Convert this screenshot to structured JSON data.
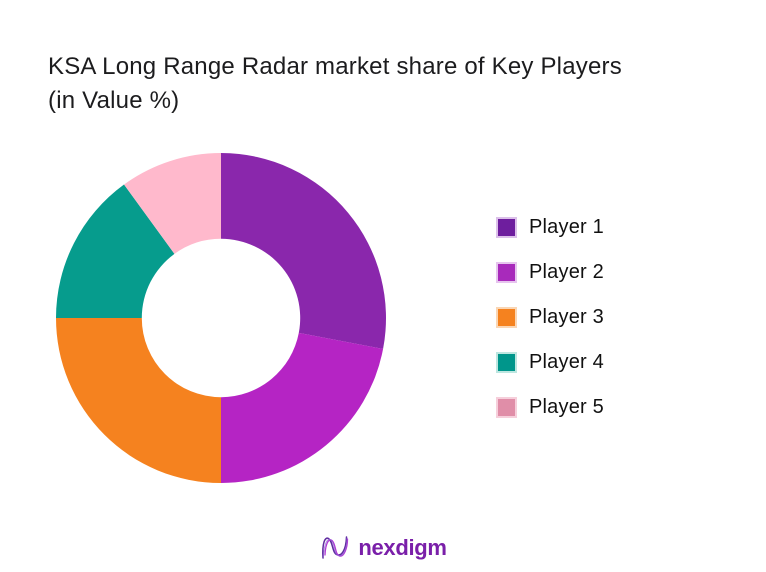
{
  "title": {
    "line1": "KSA Long Range Radar market share of Key Players",
    "line2": "(in Value %)",
    "color": "#1c1c1e"
  },
  "chart_data": {
    "type": "pie",
    "subtype": "donut",
    "title": "KSA Long Range Radar market share of Key Players (in Value %)",
    "unit": "percent of value",
    "categories": [
      "Player 1",
      "Player 2",
      "Player 3",
      "Player 4",
      "Player 5"
    ],
    "values": [
      28,
      22,
      25,
      15,
      10
    ],
    "slice_colors": [
      "#8A27AC",
      "#B524C4",
      "#F5821F",
      "#069C8D",
      "#FFB9CC"
    ],
    "start_angle_deg": 0,
    "direction": "clockwise",
    "inner_radius_ratio": 0.48,
    "legend_position": "right",
    "data_labels": "none"
  },
  "legend": {
    "items": [
      {
        "label": "Player 1",
        "swatch_color": "#6E1E9E",
        "swatch_border": "#DCC0EA"
      },
      {
        "label": "Player 2",
        "swatch_color": "#A82ABB",
        "swatch_border": "#E6C4EE"
      },
      {
        "label": "Player 3",
        "swatch_color": "#F5821F",
        "swatch_border": "#FAD6B4"
      },
      {
        "label": "Player 4",
        "swatch_color": "#00968B",
        "swatch_border": "#BDE6E0"
      },
      {
        "label": "Player 5",
        "swatch_color": "#E08EA8",
        "swatch_border": "#F6CFDB"
      }
    ]
  },
  "footer": {
    "brand": "nexdigm",
    "brand_color": "#7A1FA9",
    "mark_colors": [
      "#5F2C9E",
      "#B13BD4",
      "#8A5BD6"
    ]
  }
}
